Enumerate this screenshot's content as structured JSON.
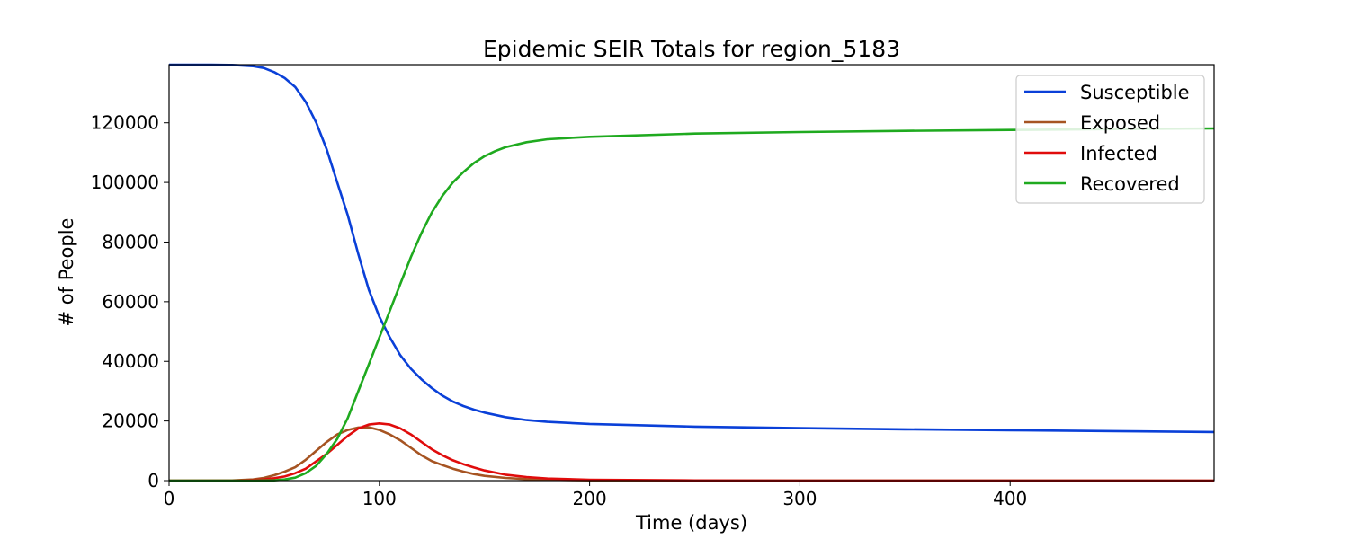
{
  "chart_data": {
    "type": "line",
    "title": "Epidemic SEIR Totals for region_5183",
    "xlabel": "Time (days)",
    "ylabel": "# of People",
    "xlim": [
      0,
      497
    ],
    "ylim": [
      0,
      139500
    ],
    "x_ticks": [
      0,
      100,
      200,
      300,
      400
    ],
    "y_ticks": [
      0,
      20000,
      40000,
      60000,
      80000,
      100000,
      120000
    ],
    "x_tick_labels": [
      "0",
      "100",
      "200",
      "300",
      "400"
    ],
    "y_tick_labels": [
      "0",
      "20000",
      "40000",
      "60000",
      "80000",
      "100000",
      "120000"
    ],
    "grid": false,
    "legend_position": "top-right",
    "series": [
      {
        "name": "Susceptible",
        "color": "#0a40d8",
        "points": [
          [
            0,
            139500
          ],
          [
            20,
            139500
          ],
          [
            30,
            139400
          ],
          [
            40,
            139000
          ],
          [
            45,
            138400
          ],
          [
            50,
            137000
          ],
          [
            55,
            135000
          ],
          [
            60,
            132000
          ],
          [
            65,
            127000
          ],
          [
            70,
            120000
          ],
          [
            75,
            111000
          ],
          [
            80,
            100000
          ],
          [
            85,
            89000
          ],
          [
            90,
            76000
          ],
          [
            95,
            64000
          ],
          [
            100,
            55000
          ],
          [
            105,
            48000
          ],
          [
            110,
            42000
          ],
          [
            115,
            37500
          ],
          [
            120,
            34000
          ],
          [
            125,
            31000
          ],
          [
            130,
            28500
          ],
          [
            135,
            26500
          ],
          [
            140,
            25000
          ],
          [
            145,
            23800
          ],
          [
            150,
            22800
          ],
          [
            160,
            21300
          ],
          [
            170,
            20300
          ],
          [
            180,
            19700
          ],
          [
            200,
            19000
          ],
          [
            250,
            18100
          ],
          [
            300,
            17600
          ],
          [
            350,
            17200
          ],
          [
            400,
            16900
          ],
          [
            450,
            16600
          ],
          [
            497,
            16300
          ]
        ]
      },
      {
        "name": "Exposed",
        "color": "#a65422",
        "points": [
          [
            0,
            0
          ],
          [
            30,
            50
          ],
          [
            40,
            400
          ],
          [
            45,
            900
          ],
          [
            50,
            1800
          ],
          [
            55,
            3000
          ],
          [
            60,
            4500
          ],
          [
            65,
            7000
          ],
          [
            70,
            10000
          ],
          [
            75,
            13000
          ],
          [
            80,
            15500
          ],
          [
            85,
            17000
          ],
          [
            90,
            17800
          ],
          [
            95,
            17900
          ],
          [
            100,
            17000
          ],
          [
            105,
            15500
          ],
          [
            110,
            13500
          ],
          [
            115,
            11000
          ],
          [
            120,
            8500
          ],
          [
            125,
            6500
          ],
          [
            130,
            5200
          ],
          [
            135,
            4000
          ],
          [
            140,
            3000
          ],
          [
            145,
            2200
          ],
          [
            150,
            1600
          ],
          [
            160,
            900
          ],
          [
            170,
            500
          ],
          [
            180,
            300
          ],
          [
            200,
            100
          ],
          [
            250,
            20
          ],
          [
            497,
            0
          ]
        ]
      },
      {
        "name": "Infected",
        "color": "#e00c0c",
        "points": [
          [
            0,
            0
          ],
          [
            30,
            0
          ],
          [
            40,
            200
          ],
          [
            45,
            400
          ],
          [
            50,
            800
          ],
          [
            55,
            1400
          ],
          [
            60,
            2500
          ],
          [
            65,
            4000
          ],
          [
            70,
            6500
          ],
          [
            75,
            9000
          ],
          [
            80,
            12000
          ],
          [
            85,
            15000
          ],
          [
            90,
            17500
          ],
          [
            95,
            18800
          ],
          [
            100,
            19200
          ],
          [
            105,
            18800
          ],
          [
            110,
            17500
          ],
          [
            115,
            15500
          ],
          [
            120,
            13000
          ],
          [
            125,
            10500
          ],
          [
            130,
            8500
          ],
          [
            135,
            6800
          ],
          [
            140,
            5500
          ],
          [
            145,
            4400
          ],
          [
            150,
            3400
          ],
          [
            160,
            2000
          ],
          [
            170,
            1200
          ],
          [
            180,
            700
          ],
          [
            200,
            300
          ],
          [
            250,
            50
          ],
          [
            300,
            10
          ],
          [
            497,
            0
          ]
        ]
      },
      {
        "name": "Recovered",
        "color": "#1faa1f",
        "points": [
          [
            0,
            0
          ],
          [
            40,
            0
          ],
          [
            50,
            100
          ],
          [
            55,
            400
          ],
          [
            60,
            1000
          ],
          [
            65,
            2500
          ],
          [
            70,
            5000
          ],
          [
            75,
            9000
          ],
          [
            80,
            14000
          ],
          [
            85,
            21000
          ],
          [
            90,
            30000
          ],
          [
            95,
            39000
          ],
          [
            100,
            48000
          ],
          [
            105,
            57000
          ],
          [
            110,
            66000
          ],
          [
            115,
            75000
          ],
          [
            120,
            83000
          ],
          [
            125,
            90000
          ],
          [
            130,
            95500
          ],
          [
            135,
            100000
          ],
          [
            140,
            103500
          ],
          [
            145,
            106500
          ],
          [
            150,
            108800
          ],
          [
            155,
            110500
          ],
          [
            160,
            111800
          ],
          [
            170,
            113500
          ],
          [
            180,
            114500
          ],
          [
            200,
            115300
          ],
          [
            250,
            116400
          ],
          [
            300,
            116900
          ],
          [
            350,
            117300
          ],
          [
            400,
            117600
          ],
          [
            450,
            117900
          ],
          [
            497,
            118100
          ]
        ]
      }
    ]
  }
}
